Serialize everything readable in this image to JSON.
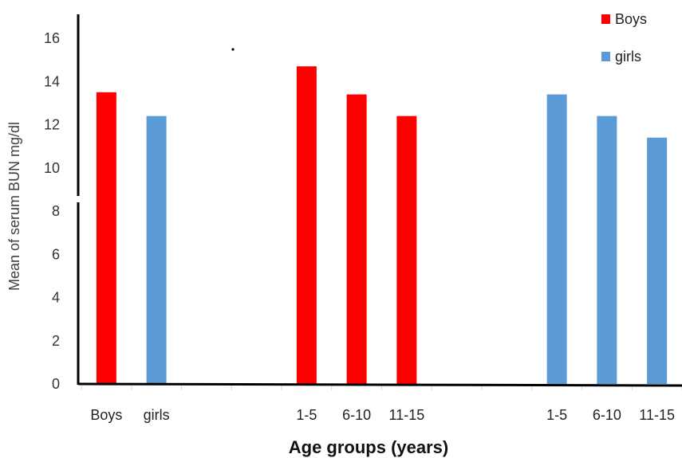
{
  "chart_data": {
    "type": "bar",
    "categories": [
      "Boys",
      "girls",
      "",
      "",
      "1-5",
      "6-10",
      "11-15",
      "",
      "",
      "1-5",
      "6-10",
      "11-15"
    ],
    "values": [
      13.5,
      12.4,
      null,
      null,
      14.7,
      13.4,
      12.4,
      null,
      null,
      13.4,
      12.4,
      11.4
    ],
    "bar_series": [
      "Boys",
      "girls",
      null,
      null,
      "Boys",
      "Boys",
      "Boys",
      null,
      null,
      "girls",
      "girls",
      "girls"
    ],
    "series": [
      {
        "name": "Boys",
        "color": "#ff0000"
      },
      {
        "name": "girls",
        "color": "#5b9bd5"
      }
    ],
    "title": "",
    "xlabel": "Age groups (years)",
    "ylabel": "Mean of serum BUN mg/dl",
    "ylim": [
      0,
      16
    ],
    "yticks": [
      0,
      2,
      4,
      6,
      8,
      10,
      12,
      14,
      16
    ],
    "grid": false,
    "legend_position": "top-right"
  }
}
